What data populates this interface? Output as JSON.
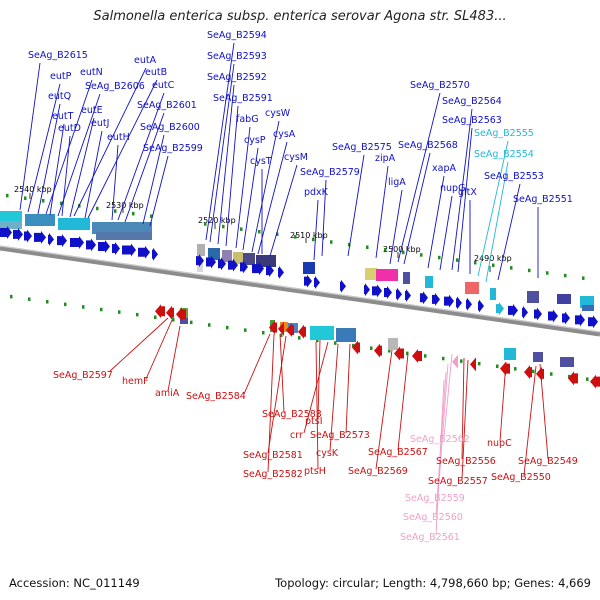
{
  "title": "Salmonella enterica subsp. enterica serovar Agona str. SL483...",
  "footer": {
    "accession": "Accession: NC_011149",
    "topology": "Topology: circular; Length: 4,798,660 bp; Genes: 4,669"
  },
  "scale_ticks": [
    "2540 kbp",
    "2530 kbp",
    "2520 kbp",
    "2510 kbp",
    "2500 kbp",
    "2490 kbp"
  ],
  "colors": {
    "forward": "#1010c8",
    "reverse": "#cc1010",
    "light_forward": "#22b8d8",
    "light_reverse": "#f0a0c8",
    "backbone": "#8c8c8c"
  },
  "forward_genes": [
    "SeAg_B2615",
    "eutP",
    "eutN",
    "eutA",
    "eutQ",
    "eutB",
    "SeAg_B2606",
    "eutC",
    "eutT",
    "eutE",
    "eutD",
    "eutJ",
    "eutH",
    "SeAg_B2601",
    "SeAg_B2600",
    "SeAg_B2599",
    "SeAg_B2594",
    "SeAg_B2593",
    "SeAg_B2592",
    "SeAg_B2591",
    "fabG",
    "cysP",
    "cysW",
    "cysA",
    "cysT",
    "cysM",
    "pdxK",
    "SeAg_B2579",
    "SeAg_B2575",
    "zipA",
    "SeAg_B2570",
    "SeAg_B2568",
    "ligA",
    "xapA",
    "nupG",
    "SeAg_B2564",
    "SeAg_B2563",
    "SeAg_B2555",
    "SeAg_B2554",
    "gltX",
    "SeAg_B2553",
    "SeAg_B2551"
  ],
  "reverse_genes": [
    "SeAg_B2597",
    "hemF",
    "amiA",
    "SeAg_B2584",
    "SeAg_B2583",
    "ptsI",
    "crr",
    "SeAg_B2573",
    "SeAg_B2581",
    "cysK",
    "SeAg_B2582",
    "ptsH",
    "SeAg_B2569",
    "SeAg_B2567",
    "SeAg_B2562",
    "SeAg_B2556",
    "SeAg_B2557",
    "SeAg_B2559",
    "SeAg_B2560",
    "SeAg_B2561",
    "nupC",
    "SeAg_B2549",
    "SeAg_B2550"
  ]
}
